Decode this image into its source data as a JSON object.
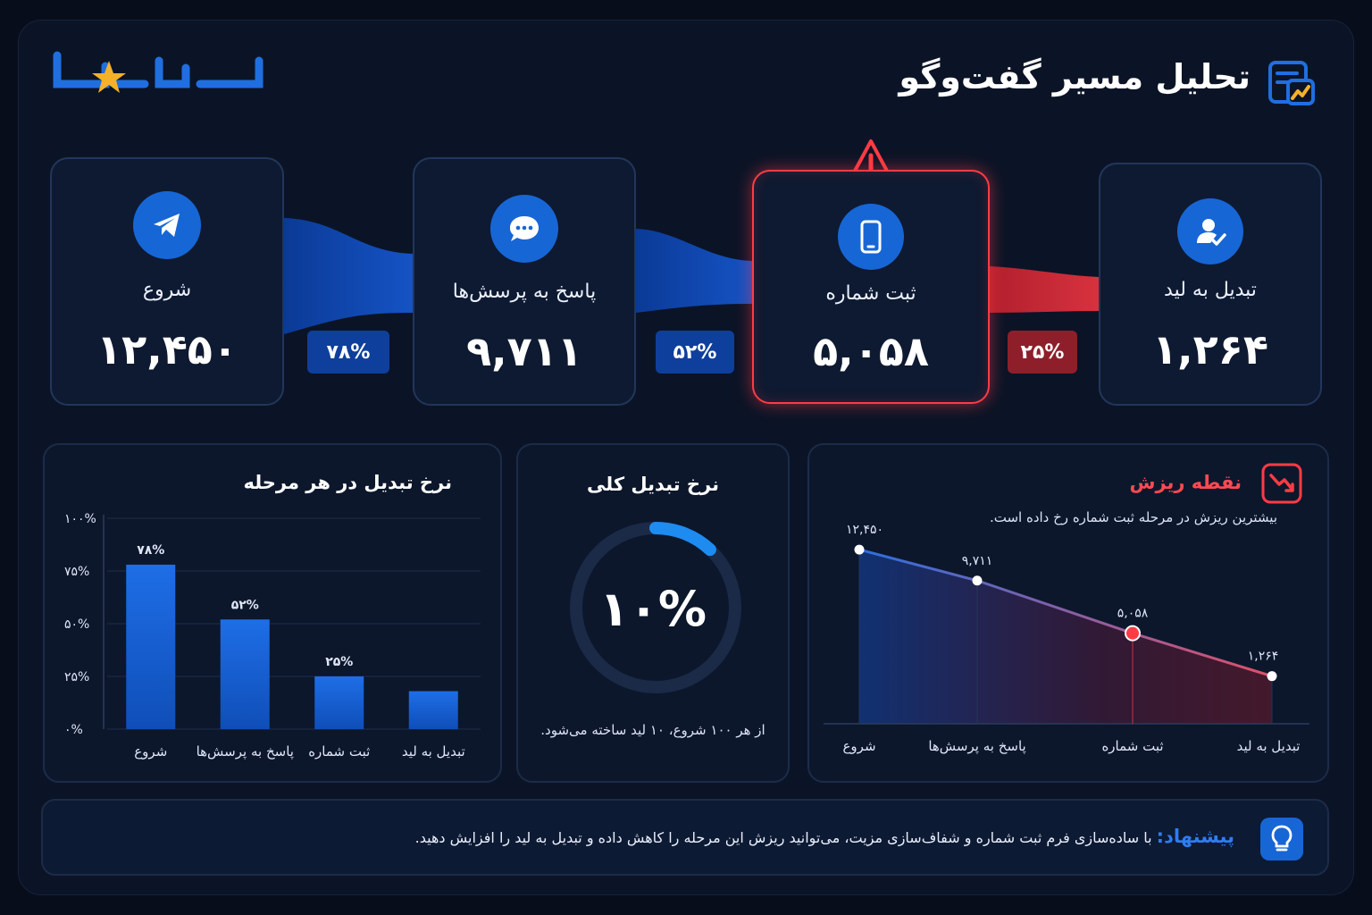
{
  "header": {
    "title": "تحلیل مسیر گفت‌وگو",
    "logo_text": "پیدانا"
  },
  "funnel": [
    {
      "label": "شروع",
      "value": "۱۲,۴۵۰",
      "icon": "telegram-icon"
    },
    {
      "label": "پاسخ به پرسش‌ها",
      "value": "۹,۷۱۱",
      "icon": "chat-bubble-icon"
    },
    {
      "label": "ثبت شماره",
      "value": "۵,۰۵۸",
      "icon": "phone-icon",
      "alert": true
    },
    {
      "label": "تبدیل به لید",
      "value": "۱,۲۶۴",
      "icon": "user-check-icon"
    }
  ],
  "transitions": [
    "۷۸%",
    "۵۲%",
    "۲۵%"
  ],
  "bar_panel": {
    "title": "نرخ تبدیل در هر مرحله",
    "y_ticks": [
      "۱۰۰%",
      "۷۵%",
      "۵۰%",
      "۲۵%",
      "۰%"
    ],
    "categories": [
      "شروع",
      "پاسخ به پرسش‌ها",
      "ثبت شماره",
      "تبدیل به لید"
    ],
    "labels": [
      "۷۸%",
      "۵۲%",
      "۲۵%"
    ]
  },
  "donut_panel": {
    "title": "نرخ تبدیل کلی",
    "value_label": "۱۰%",
    "caption": "از هر ۱۰۰ شروع، ۱۰ لید ساخته می‌شود."
  },
  "drop_panel": {
    "title": "نقطه ریزش",
    "subtitle": "بیشترین ریزش در مرحله ثبت شماره رخ داده است.",
    "categories": [
      "شروع",
      "پاسخ به پرسش‌ها",
      "ثبت شماره",
      "تبدیل به لید"
    ],
    "point_labels": [
      "۱۲,۴۵۰",
      "۹,۷۱۱",
      "۵,۰۵۸",
      "۱,۲۶۴"
    ]
  },
  "tip": {
    "label": "پیشنهاد:",
    "text": "با ساده‌سازی فرم ثبت شماره و شفاف‌سازی مزیت، می‌توانید ریزش این مرحله را کاهش داده و تبدیل به لید را افزایش دهید."
  },
  "colors": {
    "accent": "#1766d6",
    "alert": "#ff3b45",
    "background": "#0b1426"
  },
  "chart_data": [
    {
      "type": "bar",
      "title": "نرخ تبدیل در هر مرحله",
      "categories": [
        "شروع",
        "پاسخ به پرسش‌ها",
        "ثبت شماره",
        "تبدیل به لید"
      ],
      "values": [
        78,
        52,
        25,
        18
      ],
      "ylim": [
        0,
        100
      ],
      "grid": true
    },
    {
      "type": "pie",
      "title": "نرخ تبدیل کلی",
      "values": [
        10,
        90
      ],
      "categories": [
        "لید",
        "سایر"
      ]
    },
    {
      "type": "area",
      "title": "نقطه ریزش",
      "categories": [
        "شروع",
        "پاسخ به پرسش‌ها",
        "ثبت شماره",
        "تبدیل به لید"
      ],
      "values": [
        12450,
        9711,
        5058,
        1264
      ],
      "highlight_index": 2,
      "ylim": [
        0,
        14000
      ]
    }
  ]
}
